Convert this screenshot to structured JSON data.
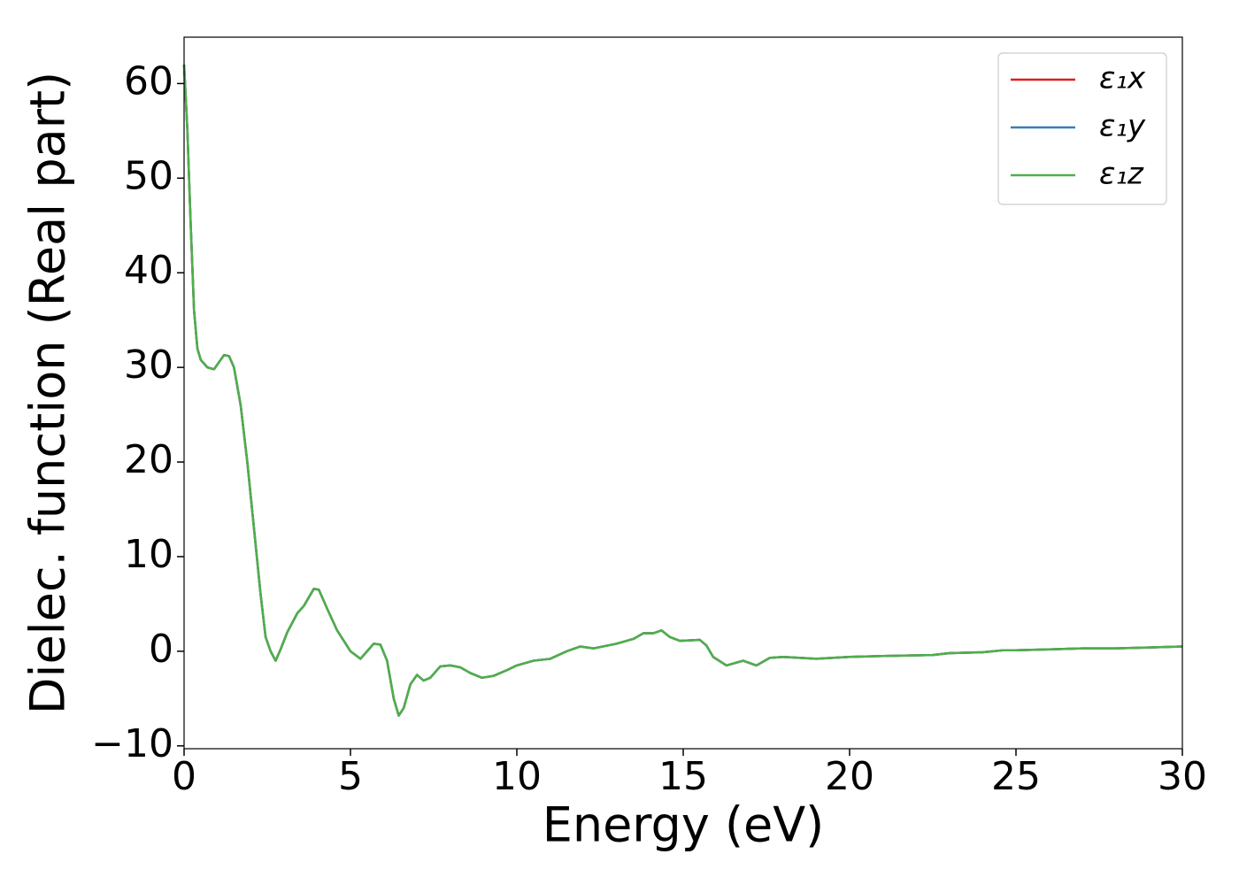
{
  "chart_data": {
    "type": "line",
    "xlabel": "Energy (eV)",
    "ylabel": "Dielec. function (Real part)",
    "x": [
      0,
      0.1,
      0.2,
      0.3,
      0.4,
      0.5,
      0.7,
      0.9,
      1.1,
      1.2,
      1.35,
      1.5,
      1.7,
      1.9,
      2.1,
      2.3,
      2.45,
      2.6,
      2.75,
      2.9,
      3.1,
      3.4,
      3.6,
      3.9,
      4.05,
      4.3,
      4.6,
      5.0,
      5.3,
      5.5,
      5.7,
      5.9,
      6.1,
      6.3,
      6.45,
      6.6,
      6.8,
      7.0,
      7.2,
      7.4,
      7.7,
      8.0,
      8.3,
      8.6,
      8.95,
      9.3,
      9.7,
      10.0,
      10.5,
      11.0,
      11.5,
      11.9,
      12.3,
      13.0,
      13.5,
      13.8,
      14.1,
      14.35,
      14.6,
      14.9,
      15.5,
      15.7,
      15.9,
      16.3,
      16.8,
      17.2,
      17.6,
      18.0,
      19.0,
      20.0,
      21.0,
      22.5,
      23.0,
      24.0,
      24.6,
      25.0,
      26.0,
      27.0,
      28.0,
      29.0,
      30.0
    ],
    "series": [
      {
        "name": "ε₁x",
        "color": "#e41a1c",
        "values": [
          62,
          55,
          45,
          36,
          32,
          30.8,
          30,
          29.8,
          30.8,
          31.3,
          31.2,
          30,
          26,
          20,
          13,
          6,
          1.5,
          0,
          -1,
          0.2,
          2,
          4,
          4.8,
          6.6,
          6.5,
          4.5,
          2.2,
          0,
          -0.8,
          0,
          0.8,
          0.7,
          -1,
          -5,
          -6.8,
          -6,
          -3.5,
          -2.5,
          -3.1,
          -2.8,
          -1.6,
          -1.5,
          -1.7,
          -2.3,
          -2.8,
          -2.6,
          -2,
          -1.5,
          -1,
          -0.8,
          0,
          0.5,
          0.3,
          0.8,
          1.3,
          1.9,
          1.9,
          2.2,
          1.5,
          1.1,
          1.2,
          0.6,
          -0.6,
          -1.5,
          -1,
          -1.5,
          -0.7,
          -0.6,
          -0.8,
          -0.6,
          -0.5,
          -0.4,
          -0.2,
          -0.1,
          0.1,
          0.1,
          0.2,
          0.3,
          0.3,
          0.4,
          0.5
        ]
      },
      {
        "name": "ε₁y",
        "color": "#377eb8",
        "values": [
          62,
          55,
          45,
          36,
          32,
          30.8,
          30,
          29.8,
          30.8,
          31.3,
          31.2,
          30,
          26,
          20,
          13,
          6,
          1.5,
          0,
          -1,
          0.2,
          2,
          4,
          4.8,
          6.6,
          6.5,
          4.5,
          2.2,
          0,
          -0.8,
          0,
          0.8,
          0.7,
          -1,
          -5,
          -6.8,
          -6,
          -3.5,
          -2.5,
          -3.1,
          -2.8,
          -1.6,
          -1.5,
          -1.7,
          -2.3,
          -2.8,
          -2.6,
          -2,
          -1.5,
          -1,
          -0.8,
          0,
          0.5,
          0.3,
          0.8,
          1.3,
          1.9,
          1.9,
          2.2,
          1.5,
          1.1,
          1.2,
          0.6,
          -0.6,
          -1.5,
          -1,
          -1.5,
          -0.7,
          -0.6,
          -0.8,
          -0.6,
          -0.5,
          -0.4,
          -0.2,
          -0.1,
          0.1,
          0.1,
          0.2,
          0.3,
          0.3,
          0.4,
          0.5
        ]
      },
      {
        "name": "ε₁z",
        "color": "#4daf4a",
        "values": [
          62,
          55,
          45,
          36,
          32,
          30.8,
          30,
          29.8,
          30.8,
          31.3,
          31.2,
          30,
          26,
          20,
          13,
          6,
          1.5,
          0,
          -1,
          0.2,
          2,
          4,
          4.8,
          6.6,
          6.5,
          4.5,
          2.2,
          0,
          -0.8,
          0,
          0.8,
          0.7,
          -1,
          -5,
          -6.8,
          -6,
          -3.5,
          -2.5,
          -3.1,
          -2.8,
          -1.6,
          -1.5,
          -1.7,
          -2.3,
          -2.8,
          -2.6,
          -2,
          -1.5,
          -1,
          -0.8,
          0,
          0.5,
          0.3,
          0.8,
          1.3,
          1.9,
          1.9,
          2.2,
          1.5,
          1.1,
          1.2,
          0.6,
          -0.6,
          -1.5,
          -1,
          -1.5,
          -0.7,
          -0.6,
          -0.8,
          -0.6,
          -0.5,
          -0.4,
          -0.2,
          -0.1,
          0.1,
          0.1,
          0.2,
          0.3,
          0.3,
          0.4,
          0.5
        ]
      }
    ],
    "xlim": [
      0,
      30
    ],
    "xticks": [
      0,
      5,
      10,
      15,
      20,
      25,
      30
    ],
    "ylim": [
      -10.3,
      64.9
    ],
    "yticks": [
      {
        "value": -10,
        "label": "−10"
      },
      0,
      10,
      20,
      30,
      40,
      50,
      60
    ],
    "grid": false,
    "legend": "upper right"
  }
}
